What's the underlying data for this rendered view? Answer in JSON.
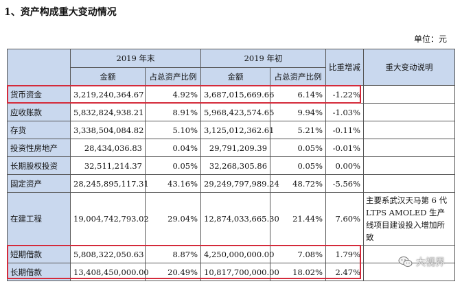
{
  "heading": "1、资产构成重大变动情况",
  "unit": "单位：元",
  "table": {
    "header": {
      "year_end": "2019 年末",
      "year_begin": "2019 年初",
      "ratio_change": "比重增减",
      "explanation": "重大变动说明",
      "amount": "金额",
      "share": "占总资产比例"
    },
    "rows": [
      {
        "item": "货币资金",
        "end_amount": "3,219,240,364.67",
        "end_share": "4.92%",
        "begin_amount": "3,687,015,669.66",
        "begin_share": "6.14%",
        "change": "-1.22%",
        "note": ""
      },
      {
        "item": "应收账款",
        "end_amount": "5,832,824,938.21",
        "end_share": "8.91%",
        "begin_amount": "5,968,423,574.65",
        "begin_share": "9.94%",
        "change": "-1.03%",
        "note": ""
      },
      {
        "item": "存货",
        "end_amount": "3,338,504,084.82",
        "end_share": "5.10%",
        "begin_amount": "3,125,012,362.61",
        "begin_share": "5.21%",
        "change": "-0.11%",
        "note": ""
      },
      {
        "item": "投资性房地产",
        "end_amount": "28,434,036.83",
        "end_share": "0.04%",
        "begin_amount": "29,791,209.39",
        "begin_share": "0.05%",
        "change": "-0.01%",
        "note": ""
      },
      {
        "item": "长期股权投资",
        "end_amount": "32,511,214.37",
        "end_share": "0.05%",
        "begin_amount": "32,268,305.86",
        "begin_share": "0.05%",
        "change": "0.00%",
        "note": ""
      },
      {
        "item": "固定资产",
        "end_amount": "28,245,895,117.31",
        "end_share": "43.16%",
        "begin_amount": "29,249,797,989.24",
        "begin_share": "48.72%",
        "change": "-5.56%",
        "note": ""
      },
      {
        "item": "在建工程",
        "end_amount": "19,004,742,793.02",
        "end_share": "29.04%",
        "begin_amount": "12,874,033,665.30",
        "begin_share": "21.44%",
        "change": "7.60%",
        "note": "主要系武汉天马第 6 代 LTPS AMOLED 生产线项目建设投入增加所致"
      },
      {
        "item": "短期借款",
        "end_amount": "5,808,322,050.63",
        "end_share": "8.87%",
        "begin_amount": "4,250,000,000.00",
        "begin_share": "7.08%",
        "change": "1.79%",
        "note": ""
      },
      {
        "item": "长期借款",
        "end_amount": "13,408,450,000.00",
        "end_share": "20.49%",
        "begin_amount": "10,817,700,000.00",
        "begin_share": "18.02%",
        "change": "2.47%",
        "note": ""
      }
    ]
  },
  "highlight_color": "#d42a3a",
  "header_fill": "#c9d8ee",
  "watermark": {
    "icon": "wechat-icon",
    "text": "大视界"
  }
}
